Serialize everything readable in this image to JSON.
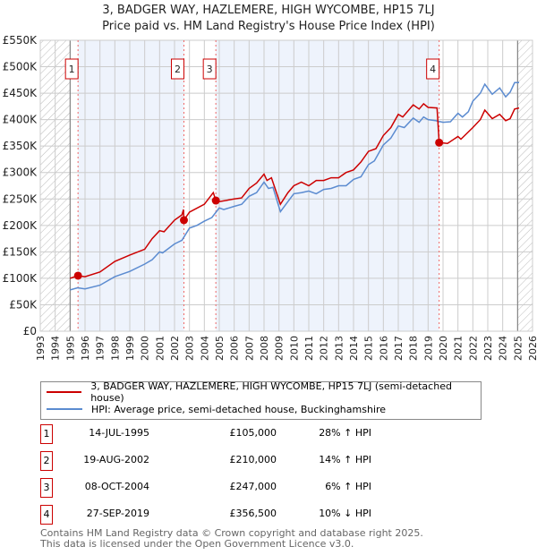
{
  "chart_data": {
    "type": "line",
    "title": "3, BADGER WAY, HAZLEMERE, HIGH WYCOMBE, HP15 7LJ",
    "subtitle": "Price paid vs. HM Land Registry's House Price Index (HPI)",
    "xlim": [
      1993,
      2026
    ],
    "ylim": [
      0,
      550000
    ],
    "x_ticks": [
      "1993",
      "1994",
      "1995",
      "1996",
      "1997",
      "1998",
      "1999",
      "2000",
      "2001",
      "2002",
      "2003",
      "2004",
      "2005",
      "2006",
      "2007",
      "2008",
      "2009",
      "2010",
      "2011",
      "2012",
      "2013",
      "2014",
      "2015",
      "2016",
      "2017",
      "2018",
      "2019",
      "2020",
      "2021",
      "2022",
      "2023",
      "2024",
      "2025",
      "2026"
    ],
    "y_ticks": [
      {
        "v": 0,
        "label": "£0"
      },
      {
        "v": 50000,
        "label": "£50K"
      },
      {
        "v": 100000,
        "label": "£100K"
      },
      {
        "v": 150000,
        "label": "£150K"
      },
      {
        "v": 200000,
        "label": "£200K"
      },
      {
        "v": 250000,
        "label": "£250K"
      },
      {
        "v": 300000,
        "label": "£300K"
      },
      {
        "v": 350000,
        "label": "£350K"
      },
      {
        "v": 400000,
        "label": "£400K"
      },
      {
        "v": 450000,
        "label": "£450K"
      },
      {
        "v": 500000,
        "label": "£500K"
      },
      {
        "v": 550000,
        "label": "£550K"
      }
    ],
    "grid": true,
    "series": [
      {
        "name": "3, BADGER WAY, HAZLEMERE, HIGH WYCOMBE, HP15 7LJ (semi-detached house)",
        "color": "#cc0000",
        "x": [
          1995.0,
          1995.53,
          1996,
          1997,
          1998,
          1999,
          2000,
          2000.5,
          2001,
          2001.3,
          2002,
          2002.5,
          2002.6,
          2002.63,
          2003,
          2004,
          2004.6,
          2004.77,
          2005,
          2006,
          2006.5,
          2007,
          2007.5,
          2008,
          2008.2,
          2008.5,
          2009.1,
          2009.6,
          2010,
          2010.5,
          2011,
          2011.5,
          2012,
          2012.5,
          2013,
          2013.5,
          2014,
          2014.5,
          2015,
          2015.5,
          2016,
          2016.5,
          2017,
          2017.3,
          2018,
          2018.4,
          2018.7,
          2019,
          2019.6,
          2019.74,
          2020.3,
          2021,
          2021.2,
          2022,
          2022.5,
          2022.8,
          2023.3,
          2023.8,
          2024.2,
          2024.5,
          2024.8,
          2025.1
        ],
        "y": [
          100000,
          105000,
          103000,
          112000,
          132000,
          144000,
          155000,
          175000,
          190000,
          188000,
          210000,
          220000,
          230000,
          210000,
          225000,
          240000,
          262000,
          247000,
          245000,
          250000,
          252000,
          270000,
          280000,
          297000,
          285000,
          290000,
          240000,
          262000,
          275000,
          282000,
          275000,
          285000,
          285000,
          290000,
          290000,
          300000,
          305000,
          320000,
          340000,
          345000,
          370000,
          385000,
          410000,
          405000,
          428000,
          420000,
          430000,
          423000,
          422000,
          356500,
          355000,
          368000,
          363000,
          385000,
          400000,
          418000,
          402000,
          410000,
          398000,
          402000,
          420000,
          422000
        ]
      },
      {
        "name": "HPI: Average price, semi-detached house, Buckinghamshire",
        "color": "#5b8bd0",
        "x": [
          1995.0,
          1995.5,
          1996,
          1997,
          1998,
          1999,
          2000,
          2000.5,
          2001,
          2001.2,
          2002,
          2002.5,
          2003,
          2003.5,
          2004,
          2004.5,
          2005,
          2005.3,
          2006,
          2006.5,
          2007,
          2007.5,
          2008,
          2008.3,
          2008.6,
          2009.1,
          2009.6,
          2010,
          2010.5,
          2011,
          2011.5,
          2012,
          2012.5,
          2013,
          2013.5,
          2014,
          2014.5,
          2015,
          2015.4,
          2016,
          2016.5,
          2017,
          2017.4,
          2018,
          2018.4,
          2018.7,
          2019,
          2019.5,
          2020,
          2020.5,
          2021,
          2021.3,
          2021.7,
          2022,
          2022.5,
          2022.8,
          2023.3,
          2023.8,
          2024.2,
          2024.5,
          2024.8,
          2025.1
        ],
        "y": [
          78000,
          82000,
          80000,
          87000,
          103000,
          113000,
          127000,
          135000,
          150000,
          148000,
          165000,
          172000,
          195000,
          200000,
          208000,
          215000,
          233000,
          230000,
          236000,
          240000,
          255000,
          262000,
          282000,
          270000,
          272000,
          226000,
          245000,
          260000,
          262000,
          265000,
          260000,
          268000,
          270000,
          275000,
          275000,
          287000,
          292000,
          315000,
          322000,
          352000,
          365000,
          388000,
          385000,
          403000,
          395000,
          405000,
          400000,
          398000,
          395000,
          396000,
          412000,
          405000,
          415000,
          435000,
          450000,
          467000,
          448000,
          460000,
          443000,
          452000,
          470000,
          470000
        ]
      }
    ],
    "sales": [
      {
        "label": "1",
        "x": 1995.53,
        "y": 105000,
        "date": "14-JUL-1995",
        "price": "£105,000",
        "hpi": "28% ↑ HPI"
      },
      {
        "label": "2",
        "x": 2002.63,
        "y": 210000,
        "date": "19-AUG-2002",
        "price": "£210,000",
        "hpi": "14% ↑ HPI"
      },
      {
        "label": "3",
        "x": 2004.77,
        "y": 247000,
        "date": "08-OCT-2004",
        "price": "£247,000",
        "hpi": "6% ↑ HPI"
      },
      {
        "label": "4",
        "x": 2019.74,
        "y": 356500,
        "date": "27-SEP-2019",
        "price": "£356,500",
        "hpi": "10% ↓ HPI"
      }
    ],
    "shaded_data_range": [
      1995.0,
      2025.0
    ],
    "legend_position": "below"
  },
  "legend": {
    "red": "3, BADGER WAY, HAZLEMERE, HIGH WYCOMBE, HP15 7LJ (semi-detached house)",
    "blue": "HPI: Average price, semi-detached house, Buckinghamshire"
  },
  "footer": {
    "line1": "Contains HM Land Registry data © Crown copyright and database right 2025.",
    "line2": "This data is licensed under the Open Government Licence v3.0."
  }
}
